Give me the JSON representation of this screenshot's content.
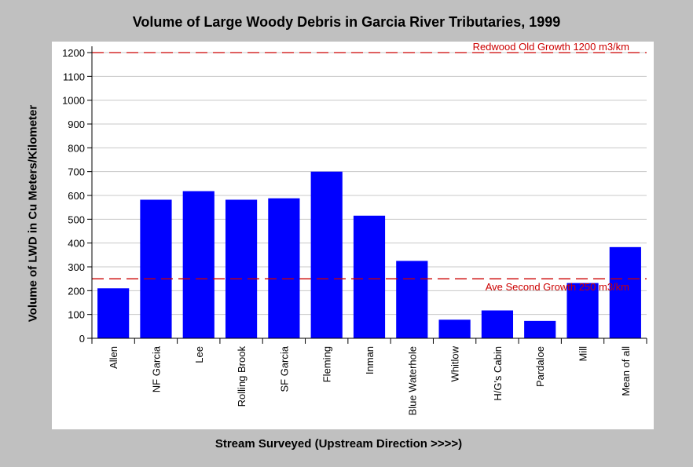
{
  "chart_data": {
    "type": "bar",
    "title": "Volume of Large Woody Debris in Garcia River Tributaries, 1999",
    "xlabel": "Stream Surveyed (Upstream Direction >>>>)",
    "ylabel": "Volume of LWD in Cu Meters/Kilometer",
    "categories": [
      "Allen",
      "NF Garcia",
      "Lee",
      "Rolling Brook",
      "SF Garcia",
      "Fleming",
      "Inman",
      "Blue Waterhole",
      "Whitlow",
      "H/G's Cabin",
      "Pardaloe",
      "Mill",
      "Mean of all"
    ],
    "values": [
      210,
      582,
      618,
      582,
      588,
      700,
      515,
      325,
      78,
      117,
      73,
      232,
      383
    ],
    "ylim": [
      0,
      1200
    ],
    "yticks": [
      0,
      100,
      200,
      300,
      400,
      500,
      600,
      700,
      800,
      900,
      1000,
      1100,
      1200
    ],
    "grid": true,
    "bar_color": "#0000ff",
    "reference_lines": [
      {
        "value": 1200,
        "label": "Redwood Old Growth 1200 m3/km",
        "color": "#cc0000"
      },
      {
        "value": 250,
        "label": "Ave Second Growth 250 m3/km",
        "color": "#cc0000"
      }
    ]
  }
}
